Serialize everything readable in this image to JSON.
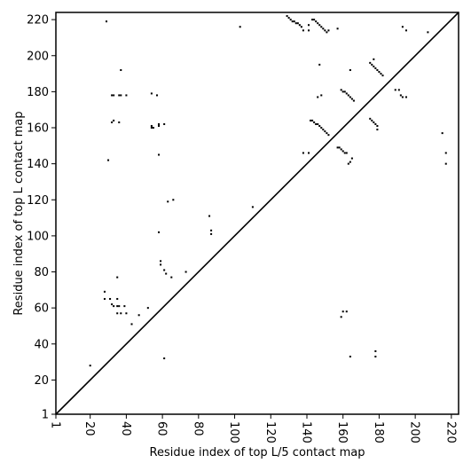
{
  "chart_data": {
    "type": "scatter",
    "title": "",
    "xlabel": "Residue index of top L/5 contact map",
    "ylabel": "Residue index of top L contact map",
    "xlim": [
      1,
      224
    ],
    "ylim": [
      1,
      224
    ],
    "xticks": [
      1,
      20,
      40,
      60,
      80,
      100,
      120,
      140,
      160,
      180,
      200,
      220
    ],
    "yticks": [
      1,
      20,
      40,
      60,
      80,
      100,
      120,
      140,
      160,
      180,
      200,
      220
    ],
    "diagonal": true,
    "marker": "square",
    "marker_color": "#000000",
    "grid": false,
    "legend": "none",
    "upper_triangle_contacts": [
      [
        29,
        219
      ],
      [
        103,
        216
      ],
      [
        129,
        222
      ],
      [
        130,
        221
      ],
      [
        131,
        220
      ],
      [
        132,
        219
      ],
      [
        133,
        219
      ],
      [
        134,
        218
      ],
      [
        135,
        218
      ],
      [
        136,
        217
      ],
      [
        137,
        216
      ],
      [
        138,
        214
      ],
      [
        141,
        214
      ],
      [
        141,
        217
      ],
      [
        143,
        220
      ],
      [
        144,
        220
      ],
      [
        145,
        219
      ],
      [
        146,
        218
      ],
      [
        147,
        217
      ],
      [
        148,
        216
      ],
      [
        149,
        215
      ],
      [
        150,
        214
      ],
      [
        151,
        213
      ],
      [
        152,
        214
      ],
      [
        157,
        215
      ],
      [
        37,
        192
      ],
      [
        147,
        195
      ],
      [
        164,
        192
      ],
      [
        32,
        178
      ],
      [
        33,
        178
      ],
      [
        36,
        178
      ],
      [
        37,
        178
      ],
      [
        40,
        178
      ],
      [
        54,
        179
      ],
      [
        57,
        178
      ],
      [
        146,
        177
      ],
      [
        148,
        178
      ],
      [
        32,
        163
      ],
      [
        33,
        164
      ],
      [
        36,
        163
      ],
      [
        54,
        161
      ],
      [
        54,
        160
      ],
      [
        55,
        160
      ],
      [
        58,
        161
      ],
      [
        58,
        162
      ],
      [
        61,
        162
      ],
      [
        142,
        164
      ],
      [
        143,
        164
      ],
      [
        144,
        163
      ],
      [
        145,
        162
      ],
      [
        146,
        162
      ],
      [
        147,
        161
      ],
      [
        148,
        160
      ],
      [
        149,
        159
      ],
      [
        150,
        158
      ],
      [
        151,
        157
      ],
      [
        152,
        156
      ],
      [
        157,
        149
      ],
      [
        158,
        149
      ],
      [
        159,
        148
      ],
      [
        160,
        147
      ],
      [
        161,
        146
      ],
      [
        162,
        146
      ],
      [
        164,
        141
      ],
      [
        165,
        143
      ],
      [
        163,
        140
      ],
      [
        159,
        181
      ],
      [
        160,
        180
      ],
      [
        161,
        180
      ],
      [
        162,
        179
      ],
      [
        163,
        178
      ],
      [
        164,
        177
      ],
      [
        165,
        176
      ],
      [
        166,
        175
      ],
      [
        175,
        196
      ],
      [
        176,
        195
      ],
      [
        177,
        194
      ],
      [
        178,
        193
      ],
      [
        179,
        192
      ],
      [
        180,
        191
      ],
      [
        181,
        190
      ],
      [
        182,
        189
      ],
      [
        177,
        198
      ],
      [
        175,
        165
      ],
      [
        176,
        164
      ],
      [
        177,
        163
      ],
      [
        178,
        162
      ],
      [
        179,
        161
      ],
      [
        179,
        159
      ],
      [
        189,
        181
      ],
      [
        191,
        181
      ],
      [
        192,
        178
      ],
      [
        193,
        177
      ],
      [
        195,
        177
      ],
      [
        193,
        216
      ],
      [
        195,
        214
      ],
      [
        207,
        213
      ],
      [
        30,
        142
      ],
      [
        58,
        145
      ],
      [
        138,
        146
      ],
      [
        141,
        146
      ]
    ],
    "lower_triangle_contacts": [
      [
        58,
        102
      ],
      [
        59,
        86
      ],
      [
        59,
        84
      ],
      [
        61,
        81
      ],
      [
        62,
        79
      ],
      [
        65,
        77
      ],
      [
        63,
        119
      ],
      [
        66,
        120
      ],
      [
        86,
        111
      ],
      [
        87,
        103
      ],
      [
        87,
        101
      ],
      [
        110,
        116
      ],
      [
        73,
        80
      ],
      [
        61,
        32
      ],
      [
        20,
        28
      ],
      [
        28,
        69
      ],
      [
        28,
        65
      ],
      [
        31,
        65
      ],
      [
        32,
        62
      ],
      [
        33,
        61
      ],
      [
        35,
        65
      ],
      [
        35,
        61
      ],
      [
        36,
        61
      ],
      [
        35,
        57
      ],
      [
        37,
        57
      ],
      [
        39,
        61
      ],
      [
        40,
        57
      ],
      [
        43,
        51
      ],
      [
        47,
        56
      ],
      [
        52,
        60
      ],
      [
        35,
        77
      ],
      [
        159,
        55
      ],
      [
        160,
        58
      ],
      [
        162,
        58
      ],
      [
        164,
        33
      ],
      [
        178,
        33
      ],
      [
        178,
        36
      ],
      [
        215,
        157
      ],
      [
        217,
        146
      ],
      [
        217,
        140
      ]
    ]
  }
}
